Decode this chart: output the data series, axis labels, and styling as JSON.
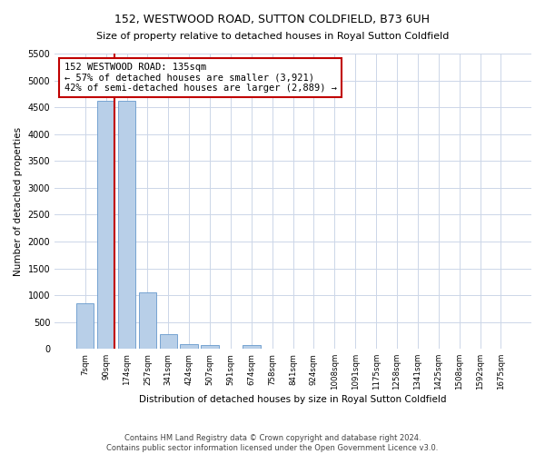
{
  "title": "152, WESTWOOD ROAD, SUTTON COLDFIELD, B73 6UH",
  "subtitle": "Size of property relative to detached houses in Royal Sutton Coldfield",
  "xlabel": "Distribution of detached houses by size in Royal Sutton Coldfield",
  "ylabel": "Number of detached properties",
  "categories": [
    "7sqm",
    "90sqm",
    "174sqm",
    "257sqm",
    "341sqm",
    "424sqm",
    "507sqm",
    "591sqm",
    "674sqm",
    "758sqm",
    "841sqm",
    "924sqm",
    "1008sqm",
    "1091sqm",
    "1175sqm",
    "1258sqm",
    "1341sqm",
    "1425sqm",
    "1508sqm",
    "1592sqm",
    "1675sqm"
  ],
  "values": [
    850,
    4620,
    4620,
    1060,
    280,
    80,
    70,
    0,
    75,
    0,
    0,
    0,
    0,
    0,
    0,
    0,
    0,
    0,
    0,
    0,
    0
  ],
  "bar_color": "#b8cfe8",
  "bar_edge_color": "#6699cc",
  "vline_color": "#c00000",
  "annotation_text": "152 WESTWOOD ROAD: 135sqm\n← 57% of detached houses are smaller (3,921)\n42% of semi-detached houses are larger (2,889) →",
  "annotation_box_color": "#ffffff",
  "annotation_box_edge": "#c00000",
  "ylim": [
    0,
    5500
  ],
  "yticks": [
    0,
    500,
    1000,
    1500,
    2000,
    2500,
    3000,
    3500,
    4000,
    4500,
    5000,
    5500
  ],
  "footnote1": "Contains HM Land Registry data © Crown copyright and database right 2024.",
  "footnote2": "Contains public sector information licensed under the Open Government Licence v3.0.",
  "background_color": "#ffffff",
  "grid_color": "#ccd6e8"
}
